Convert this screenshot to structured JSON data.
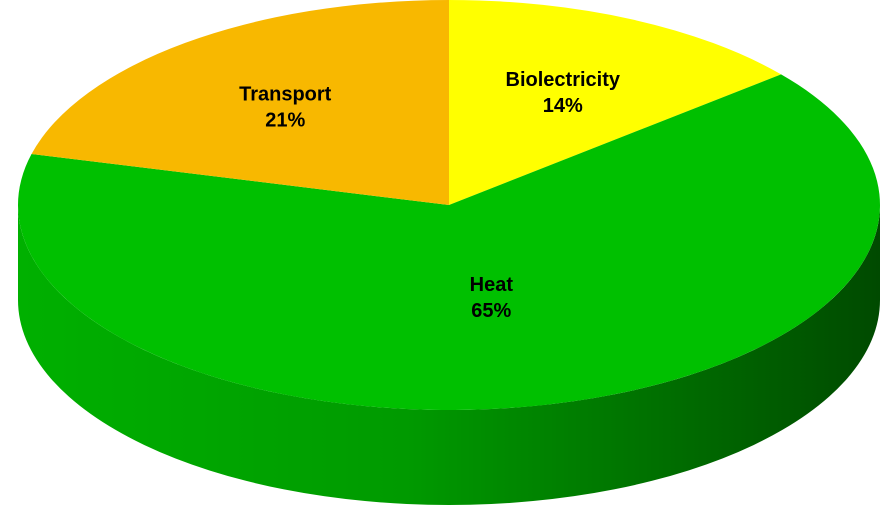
{
  "chart_data": {
    "type": "pie",
    "categories": [
      "Biolectricity",
      "Heat",
      "Transport"
    ],
    "values": [
      14,
      65,
      21
    ],
    "value_labels": [
      "14%",
      "65%",
      "21%"
    ],
    "colors": [
      "#ffff00",
      "#00c000",
      "#f8b800"
    ]
  }
}
